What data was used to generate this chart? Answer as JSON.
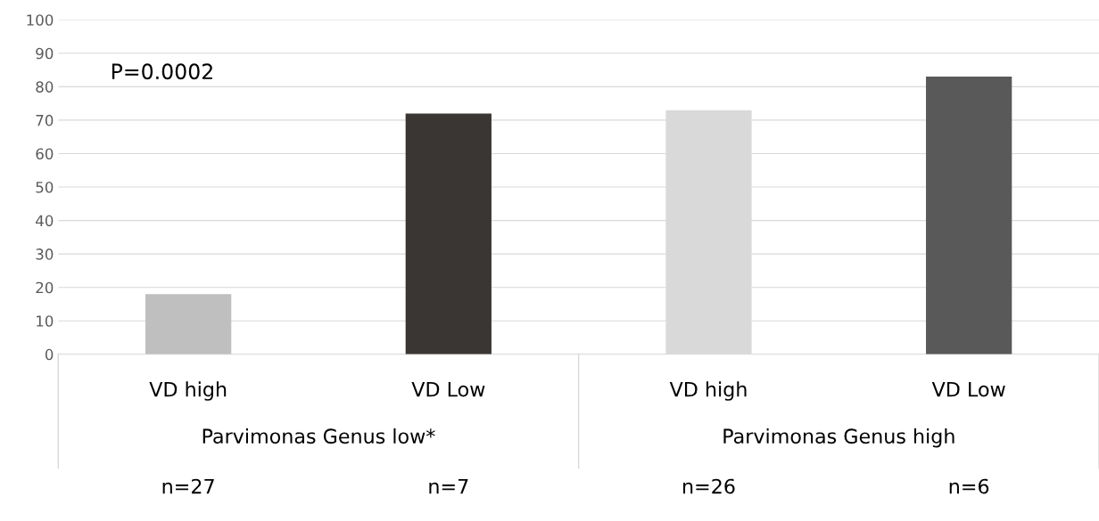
{
  "chart_data": {
    "type": "bar",
    "categories": [
      "VD high",
      "VD Low",
      "VD high",
      "VD Low"
    ],
    "values": [
      18,
      72,
      73,
      83
    ],
    "colors": [
      "#bfbfbf",
      "#3a3634",
      "#d9d9d9",
      "#595959"
    ],
    "ylim": [
      0,
      100
    ],
    "yticks": [
      0,
      10,
      20,
      30,
      40,
      50,
      60,
      70,
      80,
      90,
      100
    ],
    "grid": "y",
    "annotations": [
      "P=0.0002",
      "Parvimonas Genus low*",
      "Parvimonas Genus high",
      "n=27",
      "n=7",
      "n=26",
      "n=6"
    ]
  }
}
